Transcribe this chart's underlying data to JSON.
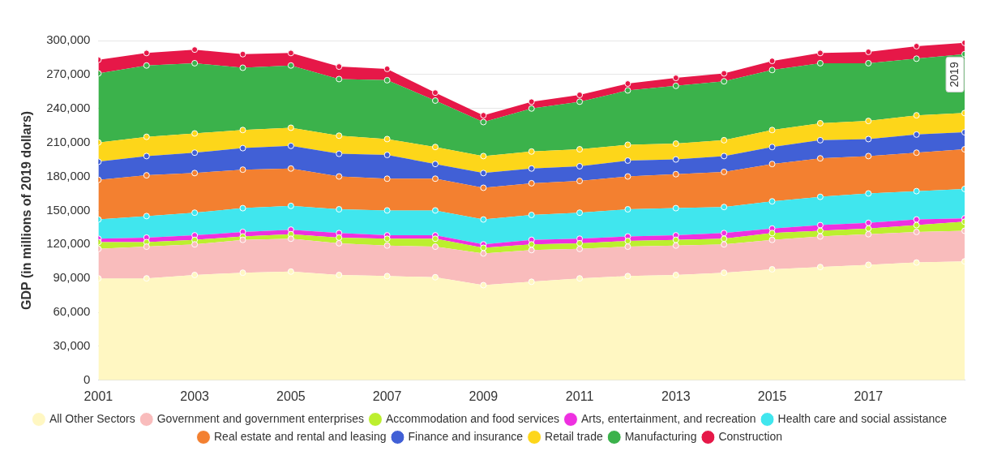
{
  "chart_data": {
    "type": "area",
    "stacked": true,
    "ylabel": "GDP (in millions of 2019 dollars)",
    "x": [
      2001,
      2002,
      2003,
      2004,
      2005,
      2006,
      2007,
      2008,
      2009,
      2010,
      2011,
      2012,
      2013,
      2014,
      2015,
      2016,
      2017,
      2018,
      2019
    ],
    "xlim": [
      2001,
      2019
    ],
    "xticks": [
      2001,
      2003,
      2005,
      2007,
      2009,
      2011,
      2013,
      2015,
      2017
    ],
    "ylim": [
      0,
      300000
    ],
    "yticks": [
      0,
      {
        "value": 30000,
        "label": "30,000"
      },
      {
        "value": 60000,
        "label": "60,000"
      },
      {
        "value": 90000,
        "label": "90,000"
      },
      {
        "value": 120000,
        "label": "120,000"
      },
      {
        "value": 150000,
        "label": "150,000"
      },
      {
        "value": 180000,
        "label": "180,000"
      },
      {
        "value": 210000,
        "label": "210,000"
      },
      {
        "value": 240000,
        "label": "240,000"
      },
      {
        "value": 270000,
        "label": "270,000"
      },
      {
        "value": 300000,
        "label": "300,000"
      }
    ],
    "grid": "y",
    "legend": "bottom",
    "marker": "circle",
    "annotations": [
      {
        "text": "2019",
        "x": 2019,
        "y": 270000
      }
    ],
    "series": [
      {
        "name": "All Other Sectors",
        "color": "#fff7c2",
        "values": [
          90000,
          90000,
          93000,
          95000,
          96000,
          93000,
          92000,
          91000,
          84000,
          87000,
          90000,
          92000,
          93000,
          95000,
          98000,
          100000,
          102000,
          104000,
          105000
        ]
      },
      {
        "name": "Government and government enterprises",
        "color": "#f9bcbc",
        "values": [
          26000,
          28000,
          27000,
          29000,
          29000,
          28000,
          27000,
          27000,
          28000,
          28000,
          26000,
          26000,
          26000,
          25000,
          26000,
          27000,
          27000,
          27000,
          27000
        ]
      },
      {
        "name": "Accommodation and food services",
        "color": "#bcef2e",
        "values": [
          6000,
          4000,
          4000,
          3000,
          4000,
          5000,
          6000,
          7000,
          5000,
          5000,
          5000,
          5000,
          5000,
          5000,
          6000,
          5000,
          5000,
          6000,
          8000
        ]
      },
      {
        "name": "Arts, entertainment, and recreation",
        "color": "#ee30e0",
        "values": [
          3000,
          4000,
          4000,
          4000,
          4000,
          4000,
          3000,
          3000,
          3000,
          4000,
          4000,
          4000,
          4000,
          5000,
          4000,
          5000,
          5000,
          5000,
          3000
        ]
      },
      {
        "name": "Health care and social assistance",
        "color": "#40e6ee",
        "values": [
          17000,
          19000,
          20000,
          21000,
          21000,
          21000,
          22000,
          22000,
          22000,
          22000,
          23000,
          24000,
          24000,
          23000,
          24000,
          25000,
          26000,
          25000,
          26000
        ]
      },
      {
        "name": "Real estate and rental and leasing",
        "color": "#f38030",
        "values": [
          35000,
          36000,
          35000,
          34000,
          33000,
          29000,
          28000,
          28000,
          28000,
          28000,
          28000,
          29000,
          30000,
          31000,
          33000,
          34000,
          33000,
          34000,
          35000
        ]
      },
      {
        "name": "Finance and insurance",
        "color": "#4160d6",
        "values": [
          16000,
          17000,
          18000,
          19000,
          20000,
          20000,
          21000,
          13000,
          13000,
          13000,
          13000,
          14000,
          13000,
          14000,
          15000,
          16000,
          15000,
          16000,
          15000
        ]
      },
      {
        "name": "Retail trade",
        "color": "#fdd61a",
        "values": [
          17000,
          17000,
          17000,
          16000,
          16000,
          16000,
          14000,
          15000,
          15000,
          15000,
          15000,
          14000,
          14000,
          14000,
          15000,
          15000,
          16000,
          17000,
          17000
        ]
      },
      {
        "name": "Manufacturing",
        "color": "#3bb24b",
        "values": [
          61000,
          63000,
          62000,
          55000,
          55000,
          50000,
          52000,
          41000,
          30000,
          38000,
          42000,
          48000,
          51000,
          52000,
          53000,
          53000,
          51000,
          50000,
          52000
        ]
      },
      {
        "name": "Construction",
        "color": "#e61848",
        "values": [
          12000,
          11000,
          12000,
          12000,
          11000,
          11000,
          10000,
          7000,
          6000,
          6000,
          6000,
          6000,
          7000,
          7000,
          8000,
          9000,
          10000,
          11000,
          10000
        ]
      }
    ]
  }
}
